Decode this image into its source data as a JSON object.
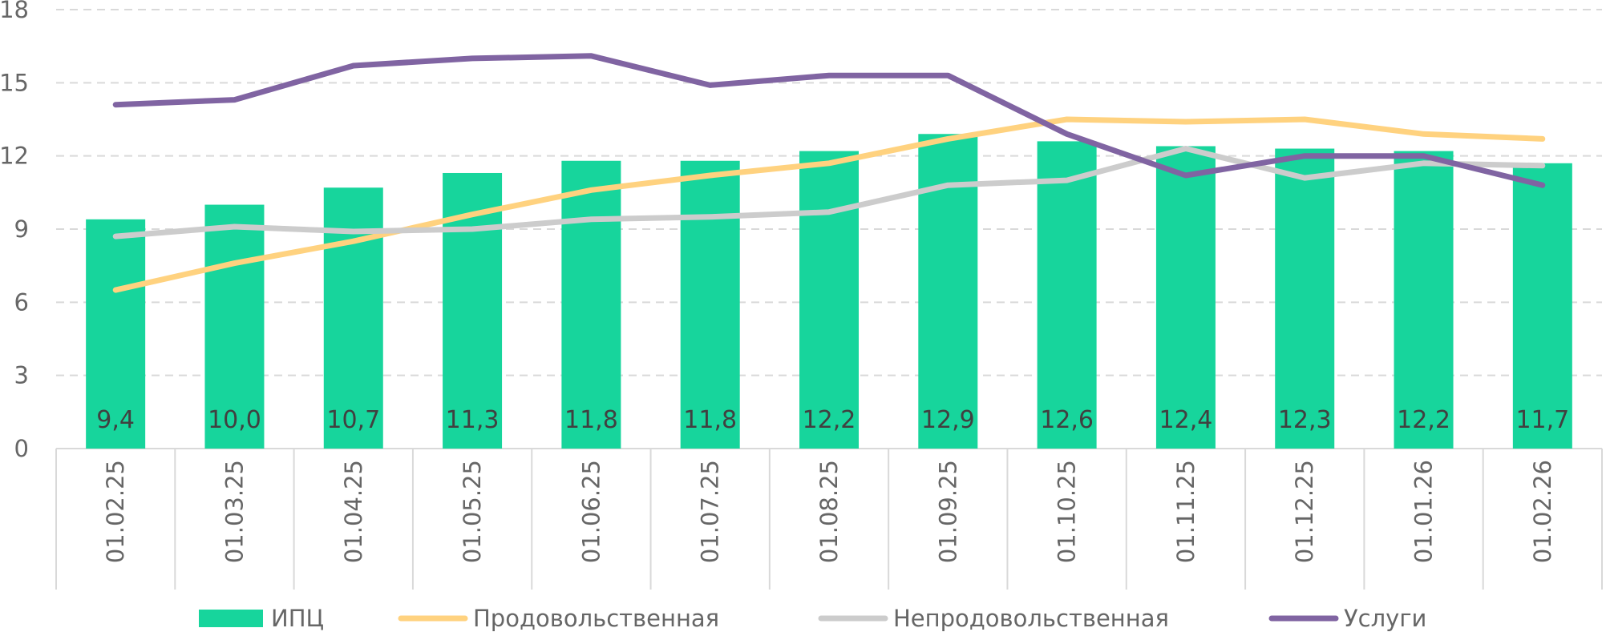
{
  "chart_data": {
    "type": "bar",
    "categories": [
      "01.02.25",
      "01.03.25",
      "01.04.25",
      "01.05.25",
      "01.06.25",
      "01.07.25",
      "01.08.25",
      "01.09.25",
      "01.10.25",
      "01.11.25",
      "01.12.25",
      "01.01.26",
      "01.02.26"
    ],
    "ylim": [
      0,
      18
    ],
    "yticks": [
      0,
      3,
      6,
      9,
      12,
      15,
      18
    ],
    "grid": true,
    "legend_position": "bottom",
    "series": [
      {
        "name": "ИПЦ",
        "type": "bar",
        "color": "#17d59c",
        "values": [
          9.4,
          10.0,
          10.7,
          11.3,
          11.8,
          11.8,
          12.2,
          12.9,
          12.6,
          12.4,
          12.3,
          12.2,
          11.7
        ],
        "labels": [
          "9,4",
          "10,0",
          "10,7",
          "11,3",
          "11,8",
          "11,8",
          "12,2",
          "12,9",
          "12,6",
          "12,4",
          "12,3",
          "12,2",
          "11,7"
        ]
      },
      {
        "name": "Продовольственная",
        "type": "line",
        "color": "#ffd27f",
        "values": [
          6.5,
          7.6,
          8.5,
          9.6,
          10.6,
          11.2,
          11.7,
          12.7,
          13.5,
          13.4,
          13.5,
          12.9,
          12.7
        ]
      },
      {
        "name": "Непродовольственная",
        "type": "line",
        "color": "#cccccc",
        "values": [
          8.7,
          9.1,
          8.9,
          9.0,
          9.4,
          9.5,
          9.7,
          10.8,
          11.0,
          12.3,
          11.1,
          11.7,
          11.6
        ]
      },
      {
        "name": "Услуги",
        "type": "line",
        "color": "#8064a2",
        "values": [
          14.1,
          14.3,
          15.7,
          16.0,
          16.1,
          14.9,
          15.3,
          15.3,
          12.9,
          11.2,
          12.0,
          12.0,
          10.8
        ]
      }
    ]
  }
}
